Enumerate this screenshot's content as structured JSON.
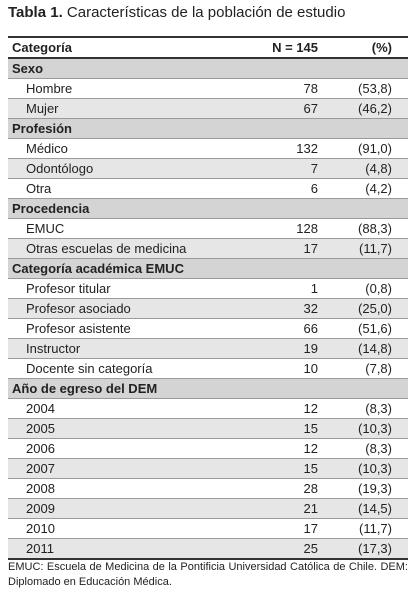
{
  "title": {
    "label": "Tabla 1.",
    "text": "Características de la población de estudio"
  },
  "header": [
    "Categoría",
    "N = 145",
    "(%)"
  ],
  "sections": [
    {
      "name": "Sexo",
      "rows": [
        [
          "Hombre",
          78,
          "(53,8)"
        ],
        [
          "Mujer",
          67,
          "(46,2)"
        ]
      ]
    },
    {
      "name": "Profesión",
      "rows": [
        [
          "Médico",
          132,
          "(91,0)"
        ],
        [
          "Odontólogo",
          7,
          "(4,8)"
        ],
        [
          "Otra",
          6,
          "(4,2)"
        ]
      ]
    },
    {
      "name": "Procedencia",
      "rows": [
        [
          "EMUC",
          128,
          "(88,3)"
        ],
        [
          "Otras escuelas de medicina",
          17,
          "(11,7)"
        ]
      ]
    },
    {
      "name": "Categoría académica EMUC",
      "rows": [
        [
          "Profesor titular",
          1,
          "(0,8)"
        ],
        [
          "Profesor asociado",
          32,
          "(25,0)"
        ],
        [
          "Profesor asistente",
          66,
          "(51,6)"
        ],
        [
          "Instructor",
          19,
          "(14,8)"
        ],
        [
          "Docente sin categoría",
          10,
          "(7,8)"
        ]
      ]
    },
    {
      "name": "Año de egreso del DEM",
      "rows": [
        [
          "2004",
          12,
          "(8,3)"
        ],
        [
          "2005",
          15,
          "(10,3)"
        ],
        [
          "2006",
          12,
          "(8,3)"
        ],
        [
          "2007",
          15,
          "(10,3)"
        ],
        [
          "2008",
          28,
          "(19,3)"
        ],
        [
          "2009",
          21,
          "(14,5)"
        ],
        [
          "2010",
          17,
          "(11,7)"
        ],
        [
          "2011",
          25,
          "(17,3)"
        ]
      ]
    }
  ],
  "footnote": "EMUC: Escuela de Medicina de la Pontificia Universidad Católica de Chile. DEM: Diplomado en Educación Médica."
}
